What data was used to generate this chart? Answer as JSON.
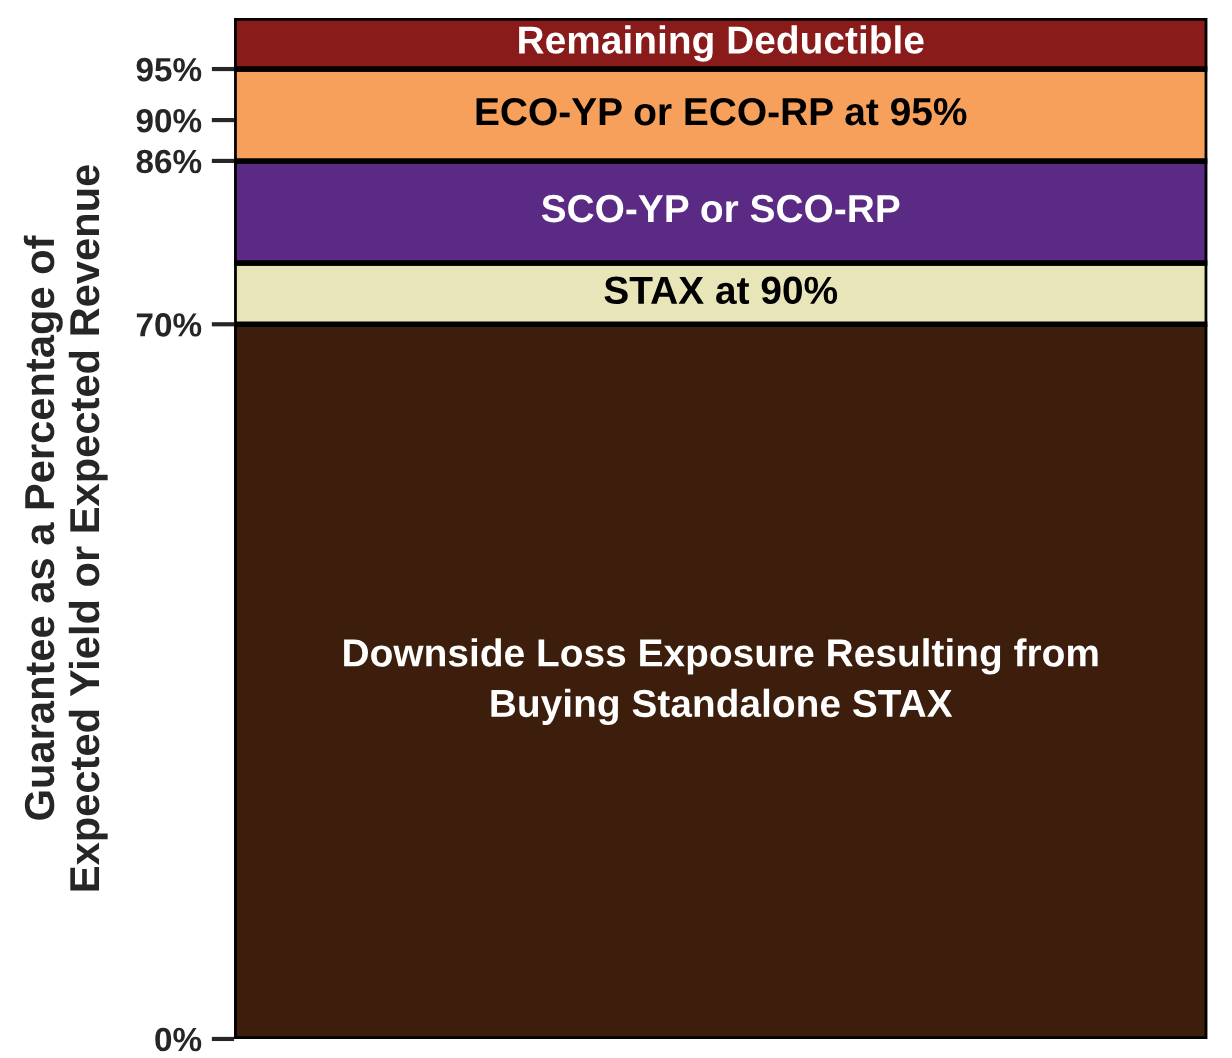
{
  "chart_data": {
    "type": "bar",
    "stacked": true,
    "ylabel": "Guarantee as a Percentage of\nExpected Yield or Expected Revenue",
    "categories": [
      null
    ],
    "series": [
      {
        "name": "Downside Loss Exposure Resulting from\nBuying Standalone STAX",
        "color": "#3d1e0c",
        "values": [
          70
        ]
      },
      {
        "name": "STAX at 90%",
        "color": "#e8e5b9",
        "values": [
          6
        ]
      },
      {
        "name": "SCO-YP or SCO-RP",
        "color": "#5a2a84",
        "values": [
          10
        ]
      },
      {
        "name": "ECO-YP or ECO-RP at 95%",
        "color": "#f6a05b",
        "values": [
          9
        ]
      },
      {
        "name": "Remaining Deductible",
        "color": "#8a1b1b",
        "values": [
          5
        ]
      }
    ],
    "ylim": [
      0,
      100
    ],
    "yticks": [
      {
        "value": 0,
        "label": "0%"
      },
      {
        "value": 70,
        "label": "70%"
      },
      {
        "value": 86,
        "label": "86%"
      },
      {
        "value": 90,
        "label": "90%"
      },
      {
        "value": 95,
        "label": "95%"
      }
    ],
    "tick_labels": "y",
    "grid": false,
    "legend": false
  }
}
